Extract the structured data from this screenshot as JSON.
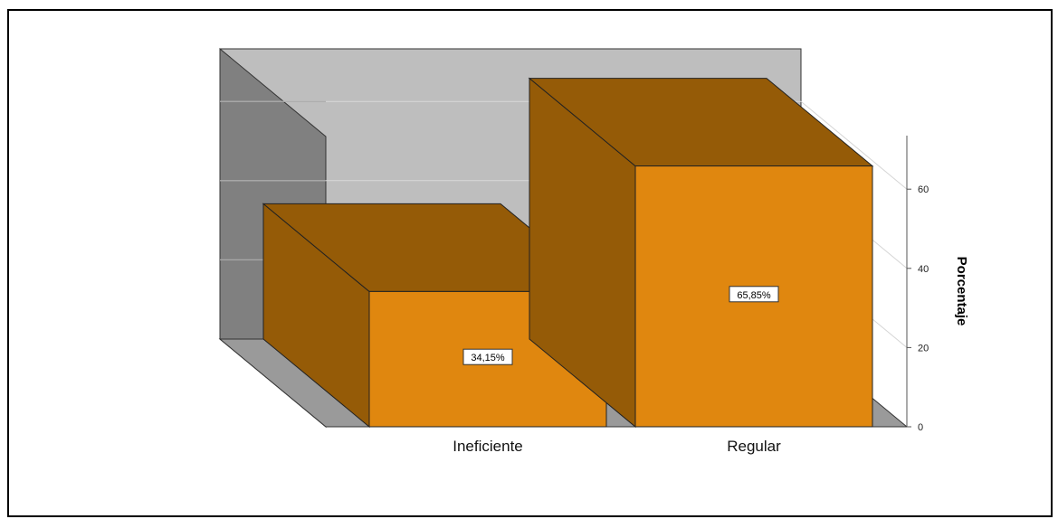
{
  "chart_data": {
    "type": "bar",
    "categories": [
      "Ineficiente",
      "Regular"
    ],
    "values": [
      34.15,
      65.85
    ],
    "data_labels": [
      "34,15%",
      "65,85%"
    ],
    "ylabel": "Porcentaje",
    "yticks": [
      0,
      20,
      40,
      60
    ],
    "ylim": [
      0,
      70
    ],
    "grid": true,
    "legend": "none",
    "style": "3d",
    "colors": {
      "bar_front": "#e0870f",
      "bar_side": "#955b07",
      "back_wall": "#bebebe",
      "side_wall": "#808080",
      "floor": "#9a9a9a"
    }
  }
}
